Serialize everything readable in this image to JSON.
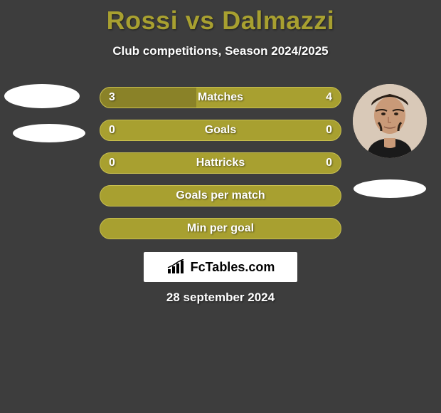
{
  "header": {
    "title": "Rossi vs Dalmazzi",
    "subtitle": "Club competitions, Season 2024/2025",
    "title_color": "#a8a030",
    "subtitle_color": "#ffffff"
  },
  "background_color": "#3d3d3d",
  "bars": {
    "bar_color": "#a8a030",
    "bar_border_color": "#c9c050",
    "fill_color": "#8a8228",
    "text_color": "#ffffff",
    "rows": [
      {
        "label": "Matches",
        "left_val": "3",
        "right_val": "4",
        "left_fill_pct": 40,
        "right_fill_pct": 0
      },
      {
        "label": "Goals",
        "left_val": "0",
        "right_val": "0",
        "left_fill_pct": 0,
        "right_fill_pct": 0
      },
      {
        "label": "Hattricks",
        "left_val": "0",
        "right_val": "0",
        "left_fill_pct": 0,
        "right_fill_pct": 0
      },
      {
        "label": "Goals per match",
        "left_val": "",
        "right_val": "",
        "left_fill_pct": 0,
        "right_fill_pct": 0
      },
      {
        "label": "Min per goal",
        "left_val": "",
        "right_val": "",
        "left_fill_pct": 0,
        "right_fill_pct": 0
      }
    ]
  },
  "logo": {
    "text": "FcTables.com",
    "box_bg": "#ffffff",
    "text_color": "#000000"
  },
  "date": "28 september 2024",
  "avatar": {
    "bg": "#d9c9b8"
  }
}
